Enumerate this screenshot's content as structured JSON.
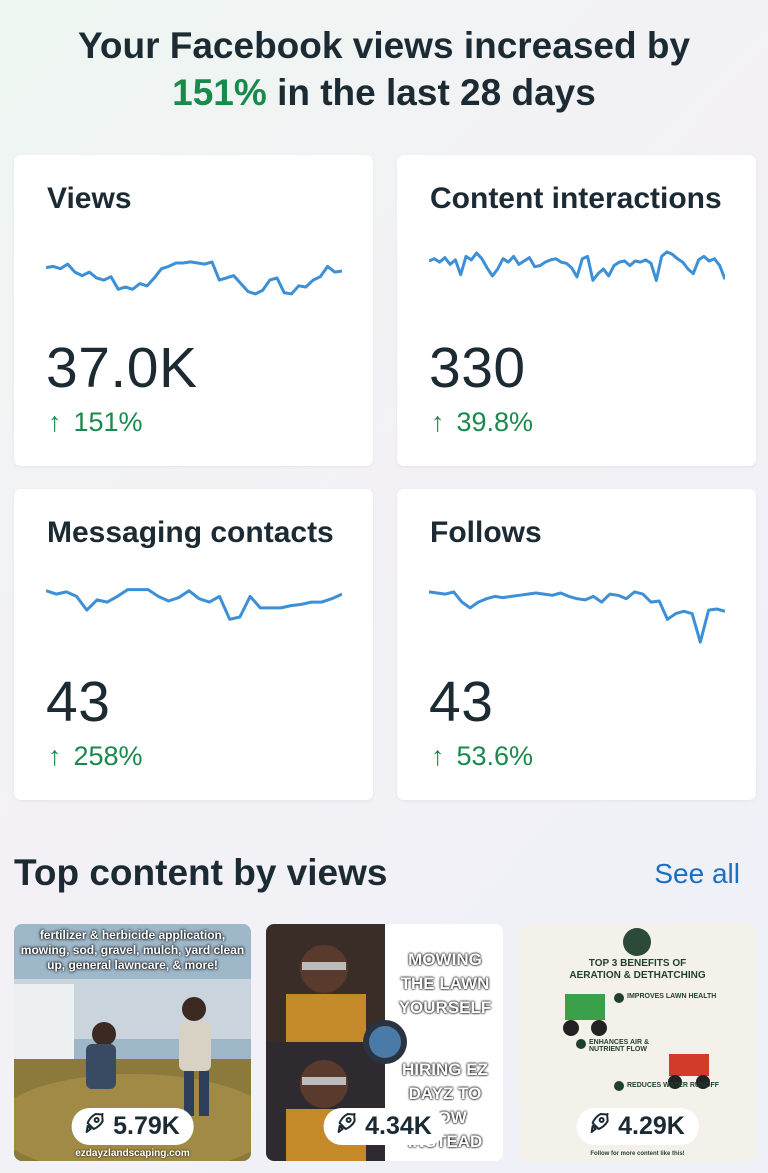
{
  "headline": {
    "line1": "Your Facebook views increased by",
    "pct": "151%",
    "line2_rest": " in the last 28 days"
  },
  "metrics": [
    {
      "label": "Views",
      "value": "37.0K",
      "arrow": "↑",
      "delta": "151%",
      "trend": [
        59,
        60,
        58,
        62,
        55,
        52,
        55,
        50,
        48,
        51,
        40,
        42,
        40,
        45,
        43,
        50,
        58,
        60,
        63,
        63,
        64,
        63,
        62,
        64,
        48,
        50,
        52,
        45,
        38,
        36,
        39,
        48,
        50,
        37,
        36,
        43,
        42,
        48,
        51,
        60,
        55,
        56
      ]
    },
    {
      "label": "Content interactions",
      "value": "330",
      "arrow": "↑",
      "delta": "39.8%",
      "trend": [
        56,
        58,
        55,
        59,
        53,
        57,
        44,
        60,
        57,
        63,
        58,
        50,
        43,
        49,
        58,
        55,
        60,
        53,
        56,
        59,
        51,
        52,
        55,
        57,
        58,
        55,
        54,
        50,
        42,
        58,
        60,
        39,
        45,
        49,
        43,
        52,
        55,
        56,
        52,
        56,
        55,
        57,
        54,
        39,
        60,
        64,
        62,
        58,
        55,
        49,
        45,
        57,
        60,
        56,
        58,
        52,
        40
      ]
    },
    {
      "label": "Messaging contacts",
      "value": "43",
      "arrow": "↑",
      "delta": "258%",
      "trend": [
        65,
        62,
        64,
        60,
        48,
        57,
        55,
        60,
        66,
        66,
        66,
        60,
        56,
        59,
        65,
        58,
        55,
        60,
        40,
        42,
        60,
        50,
        50,
        50,
        52,
        53,
        55,
        55,
        58,
        62
      ]
    },
    {
      "label": "Follows",
      "value": "43",
      "arrow": "↑",
      "delta": "53.6%",
      "trend": [
        64,
        63,
        62,
        64,
        55,
        50,
        55,
        58,
        60,
        59,
        60,
        61,
        62,
        63,
        62,
        61,
        63,
        60,
        58,
        57,
        60,
        55,
        62,
        61,
        58,
        64,
        62,
        55,
        56,
        40,
        45,
        47,
        45,
        20,
        48,
        49,
        47
      ]
    }
  ],
  "top_content": {
    "title": "Top content by views",
    "see_all": "See all",
    "items": [
      {
        "views": "5.79K",
        "caption": "fertilizer & herbicide application, mowing, sod, gravel, mulch, yard clean up, general lawncare, & more!",
        "footer": "ezdayzlandscaping.com"
      },
      {
        "views": "4.34K",
        "top_text": "MOWING THE LAWN YOURSELF",
        "bottom_text": "HIRING EZ DAYZ TO MOW INSTEAD"
      },
      {
        "views": "4.29K",
        "heading": "TOP 3 BENEFITS OF AERATION & DETHATCHING",
        "benefits": [
          "IMPROVES LAWN HEALTH",
          "ENHANCES AIR & NUTRIENT FLOW",
          "REDUCES WATER RUNOFF"
        ],
        "footer": "Follow for more content like this!"
      }
    ]
  },
  "colors": {
    "accent_green": "#1a8a4c",
    "spark_blue": "#3d8fd6",
    "link_blue": "#1b6fc2"
  }
}
